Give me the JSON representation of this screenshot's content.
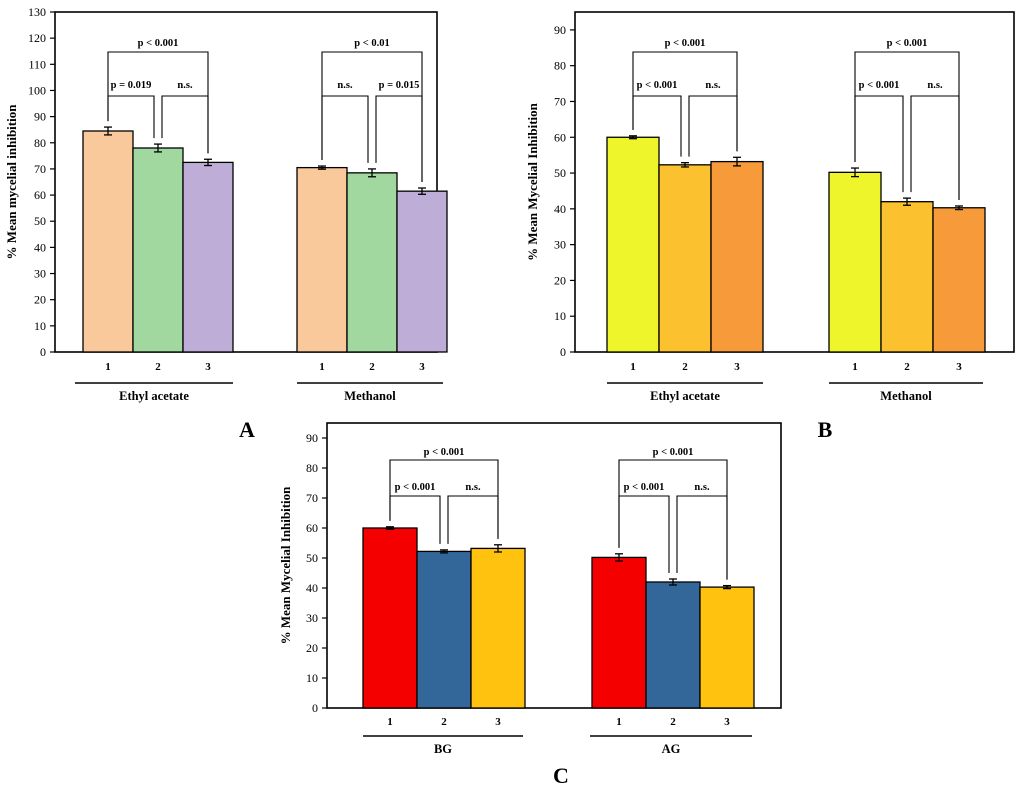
{
  "chart_data": [
    {
      "panel": "A",
      "type": "bar",
      "ylabel": "% Mean mycelial inhibition",
      "ylim": [
        0,
        130
      ],
      "yticks": [
        0,
        10,
        20,
        30,
        40,
        50,
        60,
        70,
        80,
        90,
        100,
        110,
        120,
        130
      ],
      "groups": [
        {
          "name": "Ethyl acetate",
          "categories": [
            "1",
            "2",
            "3"
          ],
          "values": [
            84.5,
            78,
            72.5
          ],
          "errors": [
            1.5,
            1.5,
            1.2
          ]
        },
        {
          "name": "Methanol",
          "categories": [
            "1",
            "2",
            "3"
          ],
          "values": [
            70.5,
            68.5,
            61.5
          ],
          "errors": [
            0.6,
            1.5,
            1.2
          ]
        }
      ],
      "colors": [
        "#F9C89B",
        "#A0D8A0",
        "#BEADD6"
      ],
      "annotations": [
        {
          "group": 0,
          "from": 0,
          "to": 2,
          "text": "p < 0.001"
        },
        {
          "group": 0,
          "from": 0,
          "to": 1,
          "text": "p = 0.019"
        },
        {
          "group": 0,
          "from": 1,
          "to": 2,
          "text": "n.s."
        },
        {
          "group": 1,
          "from": 0,
          "to": 2,
          "text": "p < 0.01"
        },
        {
          "group": 1,
          "from": 0,
          "to": 1,
          "text": "n.s."
        },
        {
          "group": 1,
          "from": 1,
          "to": 2,
          "text": "p = 0.015"
        }
      ]
    },
    {
      "panel": "B",
      "type": "bar",
      "ylabel": "% Mean Mycelial Inhibition",
      "ylim": [
        0,
        95
      ],
      "yticks": [
        0,
        10,
        20,
        30,
        40,
        50,
        60,
        70,
        80,
        90
      ],
      "groups": [
        {
          "name": "Ethyl acetate",
          "categories": [
            "1",
            "2",
            "3"
          ],
          "values": [
            60,
            52.3,
            53.2
          ],
          "errors": [
            0.4,
            0.6,
            1.2
          ]
        },
        {
          "name": "Methanol",
          "categories": [
            "1",
            "2",
            "3"
          ],
          "values": [
            50.2,
            42,
            40.3
          ],
          "errors": [
            1.2,
            1.0,
            0.5
          ]
        }
      ],
      "colors": [
        "#EEF52A",
        "#FBC12E",
        "#F79A3A"
      ],
      "annotations": [
        {
          "group": 0,
          "from": 0,
          "to": 2,
          "text": "p < 0.001"
        },
        {
          "group": 0,
          "from": 0,
          "to": 1,
          "text": "p < 0.001"
        },
        {
          "group": 0,
          "from": 1,
          "to": 2,
          "text": "n.s."
        },
        {
          "group": 1,
          "from": 0,
          "to": 2,
          "text": "p < 0.001"
        },
        {
          "group": 1,
          "from": 0,
          "to": 1,
          "text": "p < 0.001"
        },
        {
          "group": 1,
          "from": 1,
          "to": 2,
          "text": "n.s."
        }
      ]
    },
    {
      "panel": "C",
      "type": "bar",
      "ylabel": "% Mean Mycelial Inhibition",
      "ylim": [
        0,
        95
      ],
      "yticks": [
        0,
        10,
        20,
        30,
        40,
        50,
        60,
        70,
        80,
        90
      ],
      "groups": [
        {
          "name": "BG",
          "categories": [
            "1",
            "2",
            "3"
          ],
          "values": [
            60,
            52.2,
            53.2
          ],
          "errors": [
            0.4,
            0.5,
            1.2
          ]
        },
        {
          "name": "AG",
          "categories": [
            "1",
            "2",
            "3"
          ],
          "values": [
            50.2,
            42,
            40.3
          ],
          "errors": [
            1.2,
            1.0,
            0.5
          ]
        }
      ],
      "colors": [
        "#F40000",
        "#336699",
        "#FFC20E"
      ],
      "annotations": [
        {
          "group": 0,
          "from": 0,
          "to": 2,
          "text": "p < 0.001"
        },
        {
          "group": 0,
          "from": 0,
          "to": 1,
          "text": "p < 0.001"
        },
        {
          "group": 0,
          "from": 1,
          "to": 2,
          "text": "n.s."
        },
        {
          "group": 1,
          "from": 0,
          "to": 2,
          "text": "p < 0.001"
        },
        {
          "group": 1,
          "from": 0,
          "to": 1,
          "text": "p < 0.001"
        },
        {
          "group": 1,
          "from": 1,
          "to": 2,
          "text": "n.s."
        }
      ]
    }
  ]
}
